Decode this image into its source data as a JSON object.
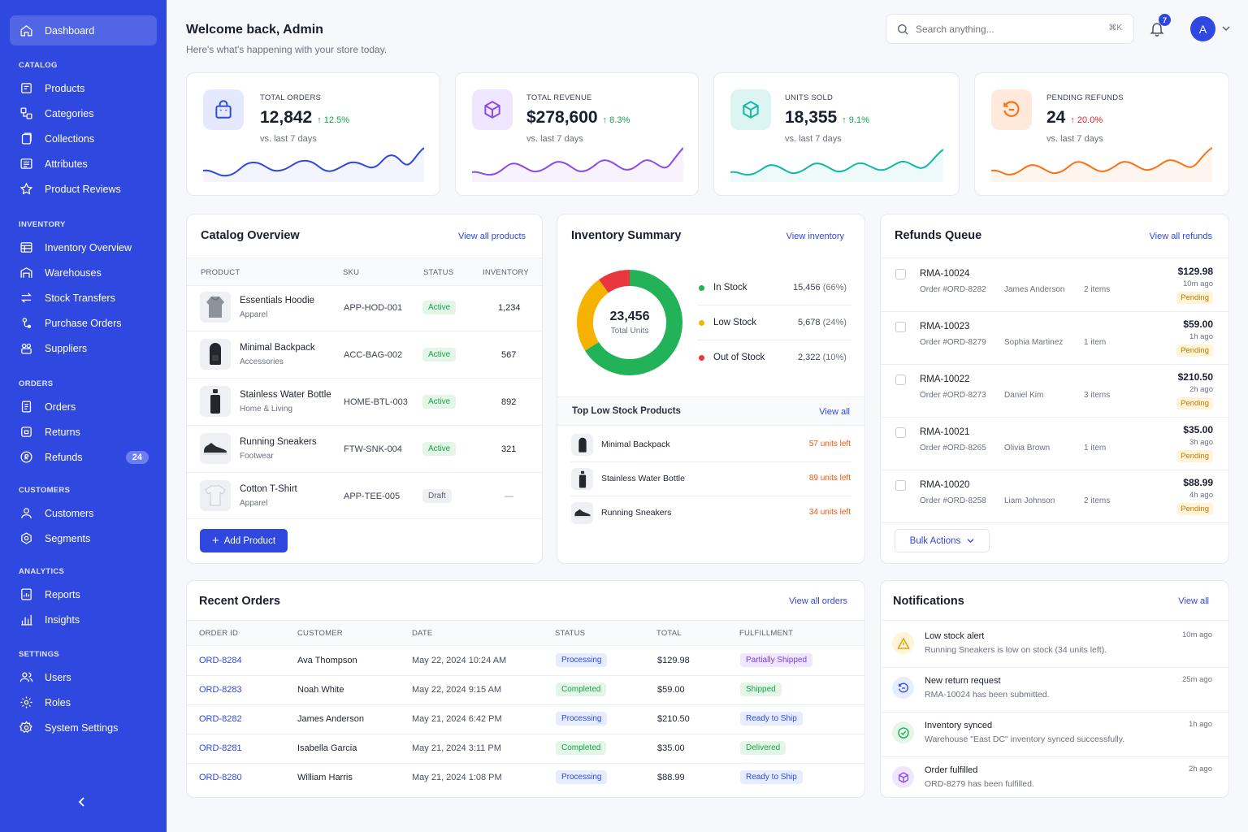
{
  "sidebar": {
    "dashboard": "Dashboard",
    "sections": [
      {
        "title": "CATALOG",
        "items": [
          "Products",
          "Categories",
          "Collections",
          "Attributes",
          "Product Reviews"
        ]
      },
      {
        "title": "INVENTORY",
        "items": [
          "Inventory Overview",
          "Warehouses",
          "Stock Transfers",
          "Purchase Orders",
          "Suppliers"
        ]
      },
      {
        "title": "ORDERS",
        "items": [
          "Orders",
          "Returns",
          "Refunds"
        ]
      },
      {
        "title": "CUSTOMERS",
        "items": [
          "Customers",
          "Segments"
        ]
      },
      {
        "title": "ANALYTICS",
        "items": [
          "Reports",
          "Insights"
        ]
      },
      {
        "title": "SETTINGS",
        "items": [
          "Users",
          "Roles",
          "System Settings"
        ]
      }
    ],
    "refunds_badge": "24"
  },
  "header": {
    "title": "Welcome back, Admin",
    "subtitle": "Here's what's happening with your store today.",
    "search_placeholder": "Search anything...",
    "search_shortcut": "⌘K",
    "notif_count": "7",
    "avatar_initial": "A"
  },
  "stats": [
    {
      "label": "TOTAL ORDERS",
      "value": "12,842",
      "change": "↑ 12.5%",
      "sub": "vs. last 7 days",
      "color": "#2f48e0",
      "bg": "#e4e9ff",
      "change_color": "#16a34a"
    },
    {
      "label": "TOTAL REVENUE",
      "value": "$278,600",
      "change": "↑ 8.3%",
      "sub": "vs. last 7 days",
      "color": "#8b4ce8",
      "bg": "#efe6ff",
      "change_color": "#16a34a"
    },
    {
      "label": "UNITS SOLD",
      "value": "18,355",
      "change": "↑ 9.1%",
      "sub": "vs. last 7 days",
      "color": "#14b8a6",
      "bg": "#dcf5f2",
      "change_color": "#16a34a"
    },
    {
      "label": "PENDING REFUNDS",
      "value": "24",
      "change": "↑ 20.0%",
      "sub": "vs. last 7 days",
      "color": "#f97316",
      "bg": "#ffe9db",
      "change_color": "#dc2626"
    }
  ],
  "catalog": {
    "title": "Catalog Overview",
    "link": "View all products",
    "headers": [
      "PRODUCT",
      "SKU",
      "STATUS",
      "INVENTORY"
    ],
    "rows": [
      {
        "name": "Essentials Hoodie",
        "category": "Apparel",
        "sku": "APP-HOD-001",
        "status": "Active",
        "inventory": "1,234"
      },
      {
        "name": "Minimal Backpack",
        "category": "Accessories",
        "sku": "ACC-BAG-002",
        "status": "Active",
        "inventory": "567"
      },
      {
        "name": "Stainless Water Bottle",
        "category": "Home & Living",
        "sku": "HOME-BTL-003",
        "status": "Active",
        "inventory": "892"
      },
      {
        "name": "Running Sneakers",
        "category": "Footwear",
        "sku": "FTW-SNK-004",
        "status": "Active",
        "inventory": "321"
      },
      {
        "name": "Cotton T-Shirt",
        "category": "Apparel",
        "sku": "APP-TEE-005",
        "status": "Draft",
        "inventory": "—"
      }
    ],
    "add_button": "Add Product"
  },
  "inventory": {
    "title": "Inventory Summary",
    "link": "View inventory",
    "total": "23,456",
    "total_label": "Total Units",
    "segments": [
      {
        "label": "In Stock",
        "value": "15,456",
        "pct": "(66%)",
        "fraction": 0.66,
        "color": "#22b358"
      },
      {
        "label": "Low Stock",
        "value": "5,678",
        "pct": "(24%)",
        "fraction": 0.24,
        "color": "#f5b300"
      },
      {
        "label": "Out of Stock",
        "value": "2,322",
        "pct": "(10%)",
        "fraction": 0.1,
        "color": "#e8383d"
      }
    ],
    "low_title": "Top Low Stock Products",
    "low_link": "View all",
    "low_items": [
      {
        "name": "Minimal Backpack",
        "left": "57 units left"
      },
      {
        "name": "Stainless Water Bottle",
        "left": "89 units left"
      },
      {
        "name": "Running Sneakers",
        "left": "34 units left"
      }
    ]
  },
  "refunds": {
    "title": "Refunds Queue",
    "link": "View all refunds",
    "items": [
      {
        "id": "RMA-10024",
        "order": "Order #ORD-8282",
        "customer": "James Anderson",
        "count": "2 items",
        "amount": "$129.98",
        "time": "10m ago",
        "status": "Pending"
      },
      {
        "id": "RMA-10023",
        "order": "Order #ORD-8279",
        "customer": "Sophia Martinez",
        "count": "1 item",
        "amount": "$59.00",
        "time": "1h ago",
        "status": "Pending"
      },
      {
        "id": "RMA-10022",
        "order": "Order #ORD-8273",
        "customer": "Daniel Kim",
        "count": "3 items",
        "amount": "$210.50",
        "time": "2h ago",
        "status": "Pending"
      },
      {
        "id": "RMA-10021",
        "order": "Order #ORD-8265",
        "customer": "Olivia Brown",
        "count": "1 item",
        "amount": "$35.00",
        "time": "3h ago",
        "status": "Pending"
      },
      {
        "id": "RMA-10020",
        "order": "Order #ORD-8258",
        "customer": "Liam Johnson",
        "count": "2 items",
        "amount": "$88.99",
        "time": "4h ago",
        "status": "Pending"
      }
    ],
    "bulk_button": "Bulk Actions"
  },
  "orders": {
    "title": "Recent Orders",
    "link": "View all orders",
    "headers": [
      "ORDER ID",
      "CUSTOMER",
      "DATE",
      "STATUS",
      "TOTAL",
      "FULFILLMENT"
    ],
    "rows": [
      {
        "id": "ORD-8284",
        "customer": "Ava Thompson",
        "date": "May 22, 2024 10:24 AM",
        "status": "Processing",
        "total": "$129.98",
        "fulfillment": "Partially Shipped"
      },
      {
        "id": "ORD-8283",
        "customer": "Noah White",
        "date": "May 22, 2024 9:15 AM",
        "status": "Completed",
        "total": "$59.00",
        "fulfillment": "Shipped"
      },
      {
        "id": "ORD-8282",
        "customer": "James Anderson",
        "date": "May 21, 2024 6:42 PM",
        "status": "Processing",
        "total": "$210.50",
        "fulfillment": "Ready to Ship"
      },
      {
        "id": "ORD-8281",
        "customer": "Isabella Garcia",
        "date": "May 21, 2024 3:11 PM",
        "status": "Completed",
        "total": "$35.00",
        "fulfillment": "Delivered"
      },
      {
        "id": "ORD-8280",
        "customer": "William Harris",
        "date": "May 21, 2024 1:08 PM",
        "status": "Processing",
        "total": "$88.99",
        "fulfillment": "Ready to Ship"
      }
    ]
  },
  "notifications": {
    "title": "Notifications",
    "link": "View all",
    "items": [
      {
        "title": "Low stock alert",
        "body": "Running Sneakers is low on stock (34 units left).",
        "time": "10m ago",
        "icon": "warning-icon"
      },
      {
        "title": "New return request",
        "body": "RMA-10024 has been submitted.",
        "time": "25m ago",
        "icon": "return-icon"
      },
      {
        "title": "Inventory synced",
        "body": "Warehouse \"East DC\" inventory synced successfully.",
        "time": "1h ago",
        "icon": "check-circle-icon"
      },
      {
        "title": "Order fulfilled",
        "body": "ORD-8279 has been fulfilled.",
        "time": "2h ago",
        "icon": "box-icon"
      }
    ]
  }
}
